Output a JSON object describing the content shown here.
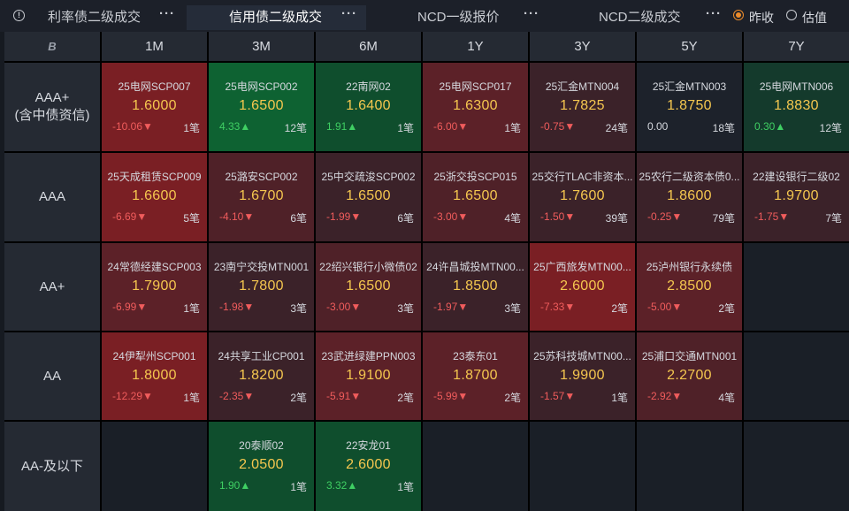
{
  "tabs": [
    {
      "label": "利率债二级成交",
      "more": "···",
      "active": false
    },
    {
      "label": "信用债二级成交",
      "more": "···",
      "active": true
    },
    {
      "label": "NCD一级报价",
      "more": "···",
      "active": false
    },
    {
      "label": "NCD二级成交",
      "more": "···",
      "active": false
    }
  ],
  "options": [
    {
      "label": "昨收",
      "selected": true
    },
    {
      "label": "估值",
      "selected": false
    }
  ],
  "corner_logo": "B",
  "columns": [
    "1M",
    "3M",
    "6M",
    "1Y",
    "3Y",
    "5Y",
    "7Y"
  ],
  "rows": [
    {
      "label": "AAA+\n(含中债资信)",
      "cells": [
        {
          "name": "25电网SCP007",
          "rate": "1.6000",
          "change": "-10.06▼",
          "count": "1笔",
          "tone": "red-strong",
          "dir": "neg"
        },
        {
          "name": "25电网SCP002",
          "rate": "1.6500",
          "change": "4.33▲",
          "count": "12笔",
          "tone": "green-strong",
          "dir": "pos"
        },
        {
          "name": "22南网02",
          "rate": "1.6400",
          "change": "1.91▲",
          "count": "1笔",
          "tone": "green",
          "dir": "pos"
        },
        {
          "name": "25电网SCP017",
          "rate": "1.6300",
          "change": "-6.00▼",
          "count": "1笔",
          "tone": "red",
          "dir": "neg"
        },
        {
          "name": "25汇金MTN004",
          "rate": "1.7825",
          "change": "-0.75▼",
          "count": "24笔",
          "tone": "red-soft",
          "dir": "neg"
        },
        {
          "name": "25汇金MTN003",
          "rate": "1.8750",
          "change": "0.00",
          "count": "18笔",
          "tone": "neutral",
          "dir": "flat"
        },
        {
          "name": "25电网MTN006",
          "rate": "1.8830",
          "change": "0.30▲",
          "count": "12笔",
          "tone": "green-soft",
          "dir": "pos"
        }
      ]
    },
    {
      "label": "AAA",
      "cells": [
        {
          "name": "25天成租赁SCP009",
          "rate": "1.6600",
          "change": "-6.69▼",
          "count": "5笔",
          "tone": "red-strong",
          "dir": "neg"
        },
        {
          "name": "25潞安SCP002",
          "rate": "1.6700",
          "change": "-4.10▼",
          "count": "6笔",
          "tone": "red-mid",
          "dir": "neg"
        },
        {
          "name": "25中交疏浚SCP002",
          "rate": "1.6500",
          "change": "-1.99▼",
          "count": "6笔",
          "tone": "red-soft",
          "dir": "neg"
        },
        {
          "name": "25浙交投SCP015",
          "rate": "1.6500",
          "change": "-3.00▼",
          "count": "4笔",
          "tone": "red-mid",
          "dir": "neg"
        },
        {
          "name": "25交行TLAC非资本...",
          "rate": "1.7600",
          "change": "-1.50▼",
          "count": "39笔",
          "tone": "red-soft",
          "dir": "neg"
        },
        {
          "name": "25农行二级资本债0...",
          "rate": "1.8600",
          "change": "-0.25▼",
          "count": "79笔",
          "tone": "red-soft",
          "dir": "neg"
        },
        {
          "name": "22建设银行二级02",
          "rate": "1.9700",
          "change": "-1.75▼",
          "count": "7笔",
          "tone": "red-soft",
          "dir": "neg"
        }
      ]
    },
    {
      "label": "AA+",
      "cells": [
        {
          "name": "24常德经建SCP003",
          "rate": "1.7900",
          "change": "-6.99▼",
          "count": "1笔",
          "tone": "red",
          "dir": "neg"
        },
        {
          "name": "23南宁交投MTN001",
          "rate": "1.7800",
          "change": "-1.98▼",
          "count": "3笔",
          "tone": "red-soft",
          "dir": "neg"
        },
        {
          "name": "22绍兴银行小微债02",
          "rate": "1.6500",
          "change": "-3.00▼",
          "count": "3笔",
          "tone": "red-mid",
          "dir": "neg"
        },
        {
          "name": "24许昌城投MTN00...",
          "rate": "1.8500",
          "change": "-1.97▼",
          "count": "3笔",
          "tone": "red-soft",
          "dir": "neg"
        },
        {
          "name": "25广西旅发MTN00...",
          "rate": "2.6000",
          "change": "-7.33▼",
          "count": "2笔",
          "tone": "red-strong",
          "dir": "neg"
        },
        {
          "name": "25泸州银行永续债",
          "rate": "2.8500",
          "change": "-5.00▼",
          "count": "2笔",
          "tone": "red",
          "dir": "neg"
        },
        null
      ]
    },
    {
      "label": "AA",
      "cells": [
        {
          "name": "24伊犁州SCP001",
          "rate": "1.8000",
          "change": "-12.29▼",
          "count": "1笔",
          "tone": "red-strong",
          "dir": "neg"
        },
        {
          "name": "24共享工业CP001",
          "rate": "1.8200",
          "change": "-2.35▼",
          "count": "2笔",
          "tone": "red-soft",
          "dir": "neg"
        },
        {
          "name": "23武进绿建PPN003",
          "rate": "1.9100",
          "change": "-5.91▼",
          "count": "2笔",
          "tone": "red",
          "dir": "neg"
        },
        {
          "name": "23泰东01",
          "rate": "1.8700",
          "change": "-5.99▼",
          "count": "2笔",
          "tone": "red",
          "dir": "neg"
        },
        {
          "name": "25苏科技城MTN00...",
          "rate": "1.9900",
          "change": "-1.57▼",
          "count": "1笔",
          "tone": "red-soft",
          "dir": "neg"
        },
        {
          "name": "25浦口交通MTN001",
          "rate": "2.2700",
          "change": "-2.92▼",
          "count": "4笔",
          "tone": "red-mid",
          "dir": "neg"
        },
        null
      ]
    },
    {
      "label": "AA-及以下",
      "cells": [
        null,
        {
          "name": "20泰顺02",
          "rate": "2.0500",
          "change": "1.90▲",
          "count": "1笔",
          "tone": "green",
          "dir": "pos"
        },
        {
          "name": "22安龙01",
          "rate": "2.6000",
          "change": "3.32▲",
          "count": "1笔",
          "tone": "green",
          "dir": "pos"
        },
        null,
        null,
        null,
        null
      ]
    }
  ]
}
